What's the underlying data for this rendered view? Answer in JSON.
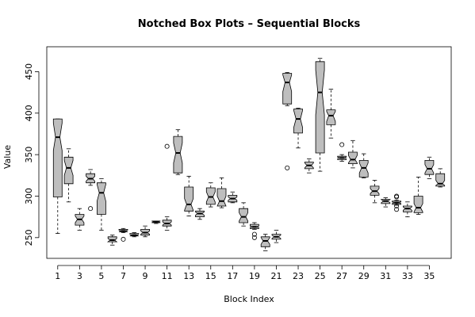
{
  "chart_data": {
    "type": "boxplot",
    "notched": true,
    "title": "Notched Box Plots – Sequential Blocks",
    "xlabel": "Block Index",
    "ylabel": "Value",
    "ylim": [
      225,
      480
    ],
    "xlim": [
      0,
      37
    ],
    "x_ticks": [
      1,
      3,
      5,
      7,
      9,
      11,
      13,
      15,
      17,
      19,
      21,
      23,
      25,
      27,
      29,
      31,
      33,
      35
    ],
    "y_ticks": [
      250,
      300,
      350,
      400,
      450
    ],
    "grid": false,
    "legend": "none",
    "box_fill": "#bebebe",
    "outlier_marker": "open-circle",
    "boxes": [
      {
        "x": 1,
        "whisker_low": 255,
        "q1": 299,
        "median": 371,
        "q3": 393,
        "whisker_high": 393,
        "notch": [
          355,
          388
        ],
        "outliers": []
      },
      {
        "x": 2,
        "whisker_low": 293,
        "q1": 315,
        "median": 334,
        "q3": 347,
        "whisker_high": 357,
        "notch": [
          325,
          343
        ],
        "outliers": []
      },
      {
        "x": 3,
        "whisker_low": 259,
        "q1": 265,
        "median": 272,
        "q3": 278,
        "whisker_high": 285,
        "notch": [
          268,
          276
        ],
        "outliers": []
      },
      {
        "x": 4,
        "whisker_low": 313,
        "q1": 316,
        "median": 321,
        "q3": 327,
        "whisker_high": 332,
        "notch": [
          318,
          324
        ],
        "outliers": [
          285
        ]
      },
      {
        "x": 5,
        "whisker_low": 259,
        "q1": 278,
        "median": 304,
        "q3": 316,
        "whisker_high": 321,
        "notch": [
          294,
          314
        ],
        "outliers": []
      },
      {
        "x": 6,
        "whisker_low": 241,
        "q1": 245,
        "median": 247,
        "q3": 251,
        "whisker_high": 253,
        "notch": [
          245,
          249
        ],
        "outliers": []
      },
      {
        "x": 7,
        "whisker_low": 256,
        "q1": 257,
        "median": 258,
        "q3": 260,
        "whisker_high": 261,
        "notch": [
          257,
          259
        ],
        "outliers": [
          248
        ]
      },
      {
        "x": 8,
        "whisker_low": 251,
        "q1": 252,
        "median": 253,
        "q3": 255,
        "whisker_high": 256,
        "notch": [
          252,
          254
        ],
        "outliers": []
      },
      {
        "x": 9,
        "whisker_low": 251,
        "q1": 253,
        "median": 256,
        "q3": 260,
        "whisker_high": 264,
        "notch": [
          254,
          258
        ],
        "outliers": []
      },
      {
        "x": 10,
        "whisker_low": 267,
        "q1": 268,
        "median": 269,
        "q3": 270,
        "whisker_high": 270,
        "notch": [
          268,
          270
        ],
        "outliers": []
      },
      {
        "x": 11,
        "whisker_low": 259,
        "q1": 264,
        "median": 267,
        "q3": 271,
        "whisker_high": 275,
        "notch": [
          265,
          269
        ],
        "outliers": [
          360
        ]
      },
      {
        "x": 12,
        "whisker_low": 326,
        "q1": 328,
        "median": 352,
        "q3": 372,
        "whisker_high": 380,
        "notch": [
          340,
          364
        ],
        "outliers": []
      },
      {
        "x": 13,
        "whisker_low": 276,
        "q1": 282,
        "median": 290,
        "q3": 311,
        "whisker_high": 324,
        "notch": [
          283,
          297
        ],
        "outliers": []
      },
      {
        "x": 14,
        "whisker_low": 272,
        "q1": 275,
        "median": 279,
        "q3": 282,
        "whisker_high": 285,
        "notch": [
          277,
          281
        ],
        "outliers": []
      },
      {
        "x": 15,
        "whisker_low": 287,
        "q1": 290,
        "median": 299,
        "q3": 310,
        "whisker_high": 316,
        "notch": [
          293,
          305
        ],
        "outliers": []
      },
      {
        "x": 16,
        "whisker_low": 286,
        "q1": 288,
        "median": 294,
        "q3": 309,
        "whisker_high": 322,
        "notch": [
          288,
          300
        ],
        "outliers": []
      },
      {
        "x": 17,
        "whisker_low": 292,
        "q1": 293,
        "median": 297,
        "q3": 301,
        "whisker_high": 305,
        "notch": [
          295,
          299
        ],
        "outliers": []
      },
      {
        "x": 18,
        "whisker_low": 264,
        "q1": 268,
        "median": 275,
        "q3": 285,
        "whisker_high": 292,
        "notch": [
          270,
          280
        ],
        "outliers": []
      },
      {
        "x": 19,
        "whisker_low": 260,
        "q1": 261,
        "median": 263,
        "q3": 266,
        "whisker_high": 268,
        "notch": [
          262,
          264
        ],
        "outliers": [
          254,
          250
        ]
      },
      {
        "x": 20,
        "whisker_low": 234,
        "q1": 239,
        "median": 246,
        "q3": 251,
        "whisker_high": 254,
        "notch": [
          242,
          250
        ],
        "outliers": []
      },
      {
        "x": 21,
        "whisker_low": 244,
        "q1": 248,
        "median": 251,
        "q3": 254,
        "whisker_high": 259,
        "notch": [
          249,
          253
        ],
        "outliers": []
      },
      {
        "x": 22,
        "whisker_low": 409,
        "q1": 411,
        "median": 437,
        "q3": 448,
        "whisker_high": 449,
        "notch": [
          426,
          446
        ],
        "outliers": [
          334
        ]
      },
      {
        "x": 23,
        "whisker_low": 358,
        "q1": 376,
        "median": 393,
        "q3": 405,
        "whisker_high": 406,
        "notch": [
          383,
          403
        ],
        "outliers": []
      },
      {
        "x": 24,
        "whisker_low": 328,
        "q1": 333,
        "median": 337,
        "q3": 341,
        "whisker_high": 345,
        "notch": [
          334,
          340
        ],
        "outliers": []
      },
      {
        "x": 25,
        "whisker_low": 330,
        "q1": 352,
        "median": 425,
        "q3": 462,
        "whisker_high": 466,
        "notch": [
          398,
          452
        ],
        "outliers": []
      },
      {
        "x": 26,
        "whisker_low": 370,
        "q1": 386,
        "median": 397,
        "q3": 404,
        "whisker_high": 429,
        "notch": [
          390,
          402
        ],
        "outliers": []
      },
      {
        "x": 27,
        "whisker_low": 342,
        "q1": 344,
        "median": 346,
        "q3": 348,
        "whisker_high": 350,
        "notch": [
          345,
          347
        ],
        "outliers": [
          362
        ]
      },
      {
        "x": 28,
        "whisker_low": 334,
        "q1": 339,
        "median": 344,
        "q3": 353,
        "whisker_high": 367,
        "notch": [
          340,
          349
        ],
        "outliers": []
      },
      {
        "x": 29,
        "whisker_low": 322,
        "q1": 323,
        "median": 334,
        "q3": 343,
        "whisker_high": 351,
        "notch": [
          328,
          340
        ],
        "outliers": []
      },
      {
        "x": 30,
        "whisker_low": 292,
        "q1": 301,
        "median": 306,
        "q3": 312,
        "whisker_high": 319,
        "notch": [
          303,
          309
        ],
        "outliers": []
      },
      {
        "x": 31,
        "whisker_low": 287,
        "q1": 291,
        "median": 294,
        "q3": 296,
        "whisker_high": 298,
        "notch": [
          292,
          296
        ],
        "outliers": []
      },
      {
        "x": 32,
        "whisker_low": 289,
        "q1": 290,
        "median": 292,
        "q3": 294,
        "whisker_high": 295,
        "notch": [
          291,
          293
        ],
        "outliers": [
          300,
          299,
          288,
          284
        ]
      },
      {
        "x": 33,
        "whisker_low": 275,
        "q1": 281,
        "median": 285,
        "q3": 288,
        "whisker_high": 293,
        "notch": [
          283,
          287
        ],
        "outliers": []
      },
      {
        "x": 34,
        "whisker_low": 278,
        "q1": 280,
        "median": 286,
        "q3": 300,
        "whisker_high": 323,
        "notch": [
          281,
          291
        ],
        "outliers": []
      },
      {
        "x": 35,
        "whisker_low": 321,
        "q1": 326,
        "median": 333,
        "q3": 343,
        "whisker_high": 347,
        "notch": [
          328,
          338
        ],
        "outliers": []
      },
      {
        "x": 36,
        "whisker_low": 311,
        "q1": 312,
        "median": 315,
        "q3": 327,
        "whisker_high": 333,
        "notch": [
          313,
          319
        ],
        "outliers": []
      }
    ]
  }
}
